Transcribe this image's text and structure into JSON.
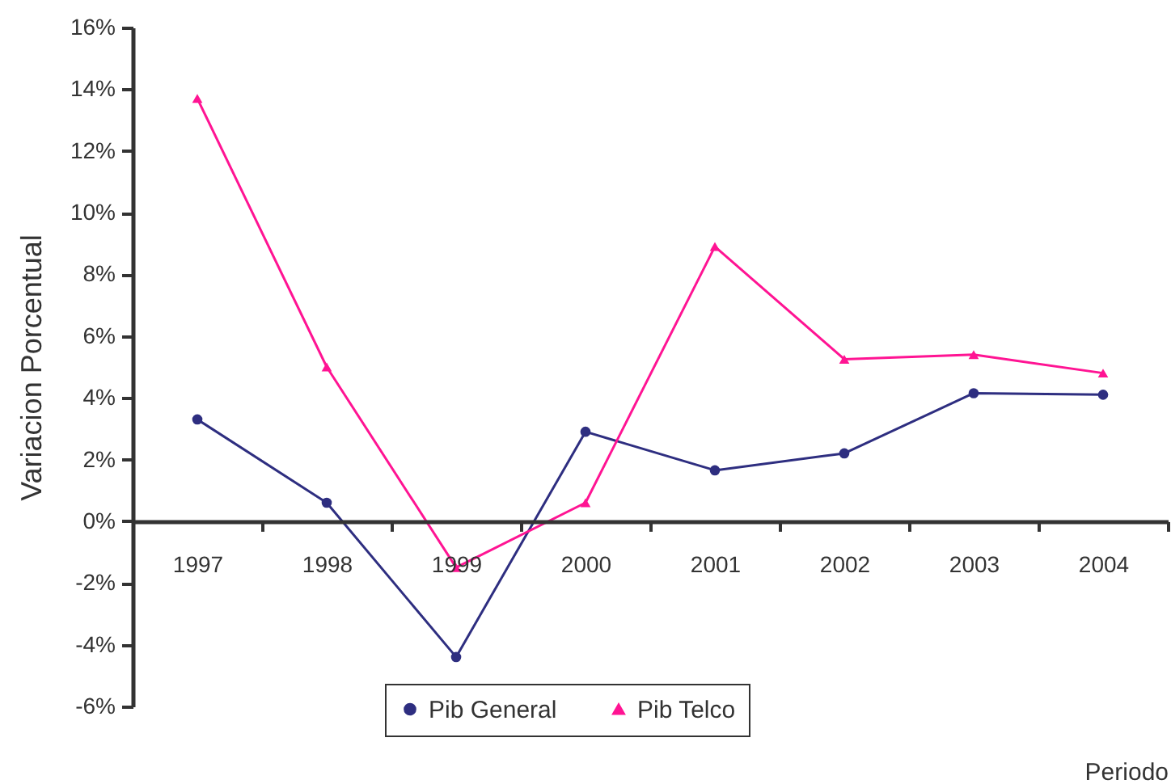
{
  "chart_data": {
    "type": "line",
    "xlabel": "Periodo",
    "ylabel": "Variacion Porcentual",
    "categories": [
      "1997",
      "1998",
      "1999",
      "2000",
      "2001",
      "2002",
      "2003",
      "2004"
    ],
    "series": [
      {
        "name": "Pib General",
        "color": "#2e2e80",
        "marker": "circle",
        "values": [
          3.3,
          0.6,
          -4.4,
          2.9,
          1.65,
          2.2,
          4.15,
          4.1
        ]
      },
      {
        "name": "Pib Telco",
        "color": "#ff1493",
        "marker": "triangle",
        "values": [
          13.7,
          5.0,
          -1.5,
          0.6,
          8.9,
          5.25,
          5.4,
          4.8
        ]
      }
    ],
    "ylim": [
      -6,
      16
    ],
    "yticks": [
      {
        "value": -6,
        "label": "-6%"
      },
      {
        "value": -4,
        "label": "-4%"
      },
      {
        "value": -2,
        "label": "-2%"
      },
      {
        "value": 0,
        "label": "0%"
      },
      {
        "value": 2,
        "label": "2%"
      },
      {
        "value": 4,
        "label": "4%"
      },
      {
        "value": 6,
        "label": "6%"
      },
      {
        "value": 8,
        "label": "8%"
      },
      {
        "value": 10,
        "label": "10%"
      },
      {
        "value": 12,
        "label": "12%"
      },
      {
        "value": 14,
        "label": "14%"
      },
      {
        "value": 16,
        "label": "16%"
      }
    ],
    "grid": false,
    "legend": "bottom"
  }
}
